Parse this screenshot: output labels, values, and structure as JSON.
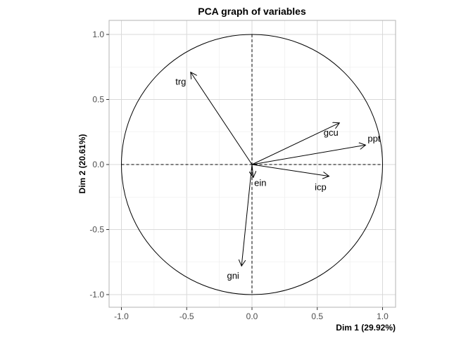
{
  "chart_data": {
    "type": "scatter",
    "title": "PCA graph of variables",
    "xlabel": "Dim 1 (29.92%)",
    "ylabel": "Dim 2 (20.61%)",
    "xlim": [
      -1.1,
      1.1
    ],
    "ylim": [
      -1.1,
      1.1
    ],
    "xticks": [
      -1.0,
      -0.5,
      0.0,
      0.5,
      1.0
    ],
    "yticks": [
      -1.0,
      -0.5,
      0.0,
      0.5,
      1.0
    ],
    "xtick_labels": [
      "-1.0",
      "-0.5",
      "0.0",
      "0.5",
      "1.0"
    ],
    "ytick_labels": [
      "-1.0",
      "-0.5",
      "0.0",
      "0.5",
      "1.0"
    ],
    "grid": true,
    "unit_circle": true,
    "variables": [
      {
        "name": "trg",
        "x": -0.47,
        "y": 0.71
      },
      {
        "name": "gcu",
        "x": 0.67,
        "y": 0.32
      },
      {
        "name": "ppt",
        "x": 0.87,
        "y": 0.15
      },
      {
        "name": "ein",
        "x": 0.01,
        "y": -0.1
      },
      {
        "name": "icp",
        "x": 0.59,
        "y": -0.09
      },
      {
        "name": "gni",
        "x": -0.08,
        "y": -0.78
      }
    ],
    "colors": {
      "arrows": "#000000",
      "grid": "#d9d9d9",
      "border": "#b3b3b3",
      "tick_text": "#4d4d4d"
    }
  }
}
